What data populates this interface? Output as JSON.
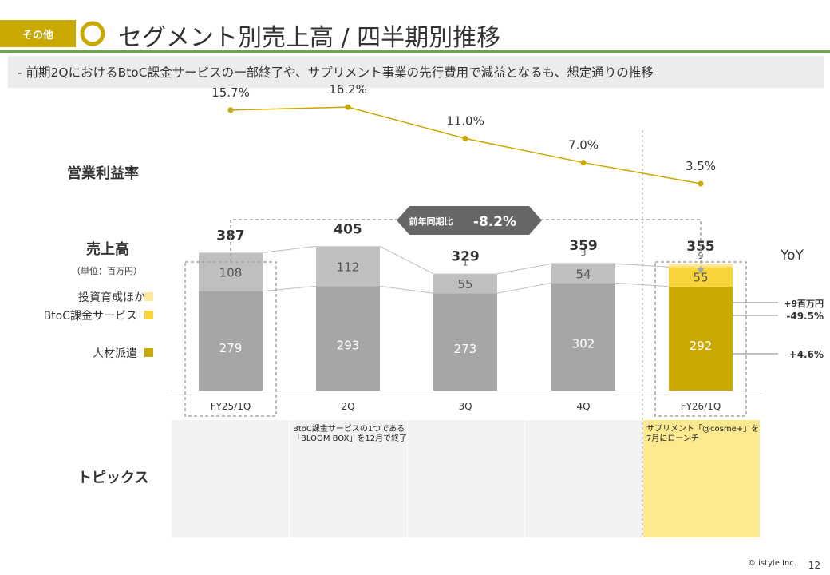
{
  "header": {
    "tag": "その他",
    "title": "セグメント別売上高 / 四半期別推移",
    "subtitle": "-  前期2QにおけるBtoC課金サービスの一部終了や、サプリメント事業の先行費用で減益となるも、想定通りの推移"
  },
  "labels": {
    "margin_section": "営業利益率",
    "sales_section": "売上高",
    "sales_unit": "（単位：百万円）",
    "topics_section": "トピックス",
    "yoy_header": "YoY",
    "yoy_callout_label": "前年同期比",
    "yoy_callout_value": "-8.2%"
  },
  "legend": [
    {
      "name": "投資育成ほか",
      "color": "#ffe699"
    },
    {
      "name": "BtoC課金サービス",
      "color": "#f7d53a"
    },
    {
      "name": "人材派遣",
      "color": "#c9a800"
    }
  ],
  "chart_data": {
    "type": "bar",
    "stacked": true,
    "categories": [
      "FY25/1Q",
      "2Q",
      "3Q",
      "4Q",
      "FY26/1Q"
    ],
    "series": [
      {
        "name": "人材派遣",
        "values": [
          279,
          293,
          273,
          302,
          292
        ]
      },
      {
        "name": "BtoC課金サービス",
        "values": [
          108,
          112,
          55,
          54,
          55
        ]
      },
      {
        "name": "投資育成ほか",
        "values": [
          0,
          0,
          1,
          3,
          9
        ]
      }
    ],
    "totals": [
      387,
      405,
      329,
      359,
      355
    ],
    "operating_margin": {
      "name": "営業利益率",
      "labels": [
        "15.7%",
        "16.2%",
        "11.0%",
        "7.0%",
        "3.5%"
      ],
      "values": [
        15.7,
        16.2,
        11.0,
        7.0,
        3.5
      ]
    },
    "yoy": [
      "+9百万円",
      "-49.5%",
      "+4.6%"
    ],
    "highlight_index": 4,
    "compare_index": 0
  },
  "topics": [
    {
      "text": ""
    },
    {
      "text": "BtoC課金サービスの1つである\n「BLOOM BOX」を12月で終了"
    },
    {
      "text": ""
    },
    {
      "text": ""
    },
    {
      "text": "サプリメント「@cosme+」を\n7月にローンチ"
    }
  ],
  "footer": {
    "copyright": "©  istyle Inc.",
    "page": "12"
  }
}
